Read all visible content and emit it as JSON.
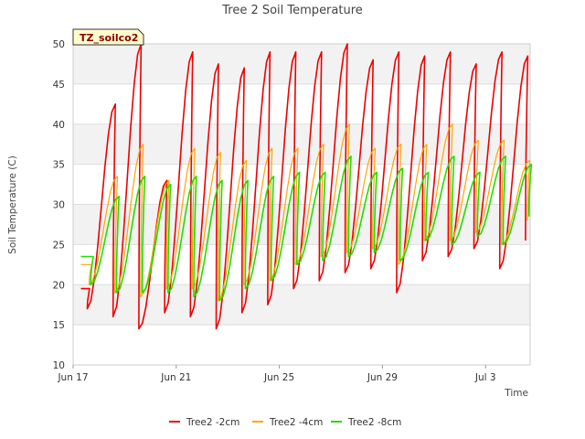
{
  "chart_data": {
    "type": "line",
    "title": "Tree 2 Soil Temperature",
    "xlabel": "Time",
    "ylabel": "Soil Temperature (C)",
    "badge": "TZ_soilco2",
    "ylim": [
      10,
      50
    ],
    "xlim": [
      0,
      18
    ],
    "y_ticks": [
      10,
      15,
      20,
      25,
      30,
      35,
      40,
      45,
      50
    ],
    "x_ticks": [
      {
        "value": 0,
        "label": "Jun 17"
      },
      {
        "value": 4,
        "label": "Jun 21"
      },
      {
        "value": 8,
        "label": "Jun 25"
      },
      {
        "value": 12,
        "label": "Jun 29"
      },
      {
        "value": 16,
        "label": "Jul 3"
      }
    ],
    "x_start": 0.3,
    "bands": true,
    "legend_position": "bottom",
    "series": [
      {
        "name": "Tree2 -2cm",
        "color": "#ee0000",
        "width": 1.6,
        "min_time": 0.55,
        "peak_time": 0.72,
        "peaks": [
          19.5,
          42.5,
          50.0,
          33.0,
          49.0,
          47.5,
          47.0,
          49.0,
          49.0,
          49.0,
          50.0,
          48.0,
          49.0,
          48.5,
          49.0,
          47.5,
          49.0,
          48.5
        ],
        "mins": [
          19.5,
          17.0,
          16.0,
          14.5,
          16.5,
          16.0,
          14.5,
          16.5,
          17.5,
          19.5,
          20.5,
          21.5,
          22.0,
          19.0,
          23.0,
          23.5,
          24.5,
          22.0,
          25.5
        ]
      },
      {
        "name": "Tree2 -4cm",
        "color": "#ffa500",
        "width": 1.2,
        "min_time": 0.62,
        "peak_time": 0.8,
        "peaks": [
          22.5,
          33.5,
          37.5,
          33.0,
          37.0,
          36.5,
          35.5,
          37.0,
          37.0,
          37.5,
          40.0,
          37.0,
          37.5,
          37.5,
          40.0,
          38.0,
          38.0,
          35.5
        ],
        "mins": [
          22.5,
          20.0,
          19.0,
          18.5,
          19.5,
          19.5,
          18.0,
          20.0,
          20.5,
          22.5,
          23.5,
          24.0,
          24.5,
          22.5,
          25.5,
          25.5,
          26.5,
          25.0,
          28.0
        ]
      },
      {
        "name": "Tree2 -8cm",
        "color": "#22dd00",
        "width": 1.6,
        "min_time": 0.68,
        "peak_time": 0.86,
        "peaks": [
          23.5,
          31.0,
          33.5,
          32.5,
          33.5,
          33.0,
          33.0,
          33.5,
          34.0,
          34.0,
          36.0,
          34.0,
          34.5,
          34.0,
          36.0,
          34.0,
          36.0,
          35.0
        ],
        "mins": [
          23.5,
          20.0,
          19.0,
          19.0,
          19.0,
          18.5,
          18.0,
          19.5,
          20.5,
          22.5,
          23.0,
          23.5,
          24.0,
          23.0,
          25.5,
          25.0,
          26.0,
          25.0,
          28.5
        ]
      }
    ]
  }
}
